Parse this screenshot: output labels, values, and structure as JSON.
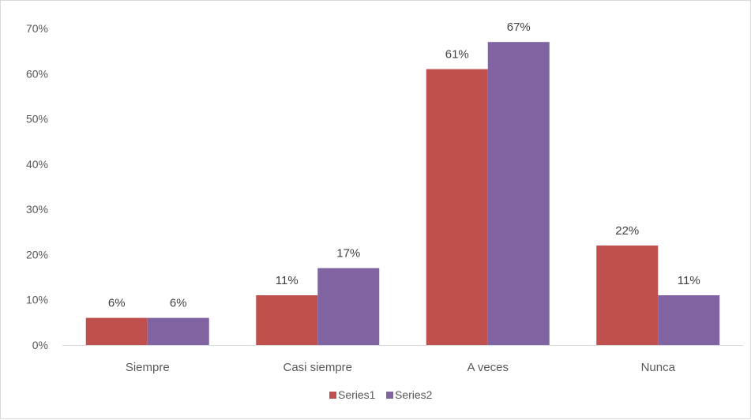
{
  "chart_data": {
    "type": "bar",
    "categories": [
      "Siempre",
      "Casi siempre",
      "A veces",
      "Nunca"
    ],
    "series": [
      {
        "name": "Series1",
        "color": "#c0504d",
        "values": [
          0.06,
          0.11,
          0.61,
          0.22
        ],
        "labels": [
          "6%",
          "11%",
          "61%",
          "22%"
        ]
      },
      {
        "name": "Series2",
        "color": "#8064a2",
        "values": [
          0.06,
          0.17,
          0.67,
          0.11
        ],
        "labels": [
          "6%",
          "17%",
          "67%",
          "11%"
        ]
      }
    ],
    "ylim": [
      0,
      0.7
    ],
    "yticks": [
      0,
      0.1,
      0.2,
      0.3,
      0.4,
      0.5,
      0.6,
      0.7
    ],
    "ytick_labels": [
      "0%",
      "10%",
      "20%",
      "30%",
      "40%",
      "50%",
      "60%",
      "70%"
    ],
    "grid": false,
    "legend_position": "bottom"
  }
}
